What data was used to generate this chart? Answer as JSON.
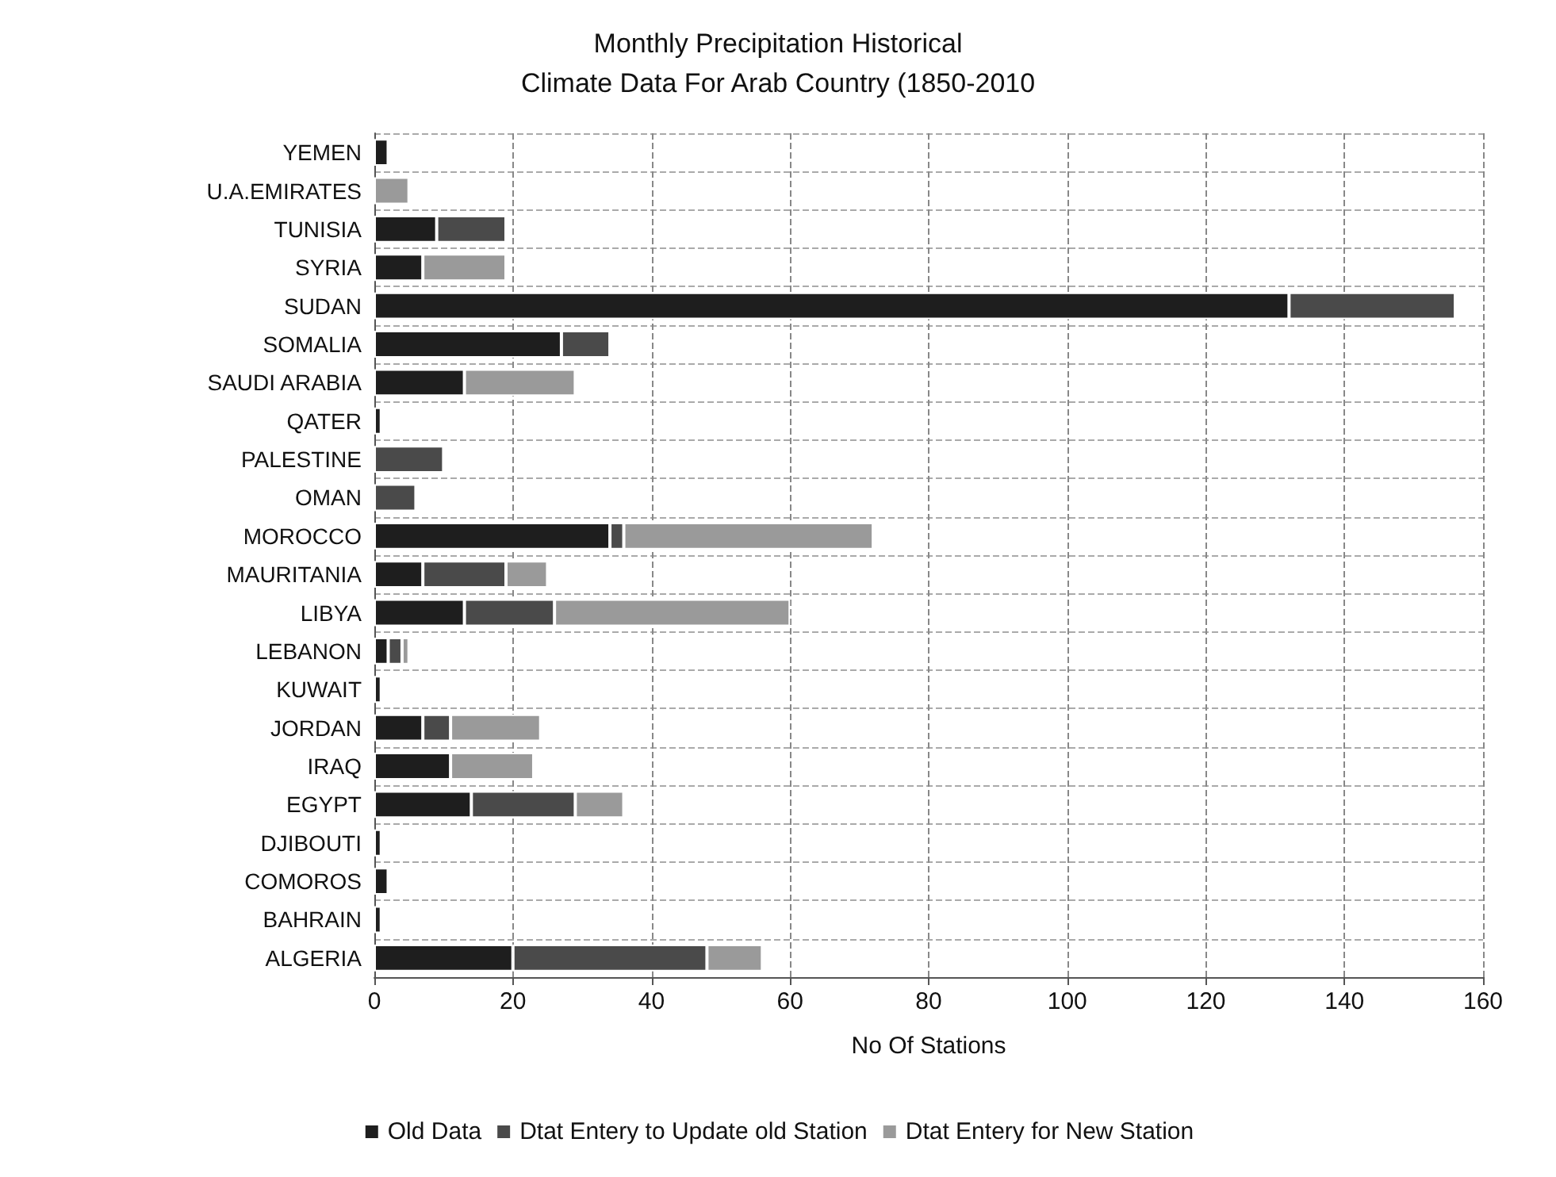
{
  "chart_data": {
    "type": "bar",
    "orientation": "horizontal",
    "stacked": true,
    "title": "Monthly Precipitation Historical",
    "subtitle": "Climate Data For Arab Country (1850-2010",
    "xlabel": "No Of Stations",
    "categories": [
      "YEMEN",
      "U.A.EMIRATES",
      "TUNISIA",
      "SYRIA",
      "SUDAN",
      "SOMALIA",
      "SAUDI ARABIA",
      "QATER",
      "PALESTINE",
      "OMAN",
      "MOROCCO",
      "MAURITANIA",
      "LIBYA",
      "LEBANON",
      "KUWAIT",
      "JORDAN",
      "IRAQ",
      "EGYPT",
      "DJIBOUTI",
      "COMOROS",
      "BAHRAIN",
      "ALGERIA"
    ],
    "series": [
      {
        "name": "Old Data",
        "color": "#1e1e1e",
        "values": [
          2,
          0,
          9,
          7,
          132,
          27,
          13,
          1,
          0,
          0,
          34,
          7,
          13,
          2,
          1,
          7,
          11,
          14,
          1,
          2,
          1,
          20
        ]
      },
      {
        "name": "Dtat Entery to Update old Station",
        "color": "#4a4a4a",
        "values": [
          0,
          0,
          10,
          0,
          24,
          7,
          0,
          0,
          10,
          6,
          2,
          12,
          13,
          2,
          0,
          4,
          0,
          15,
          0,
          0,
          0,
          28
        ]
      },
      {
        "name": "Dtat Entery for New Station",
        "color": "#9a9a9a",
        "values": [
          0,
          5,
          0,
          12,
          0,
          0,
          16,
          0,
          0,
          0,
          36,
          6,
          34,
          1,
          0,
          13,
          12,
          7,
          0,
          0,
          0,
          8
        ]
      }
    ],
    "xlim": [
      0,
      160
    ],
    "xticks": [
      0,
      20,
      40,
      60,
      80,
      100,
      120,
      140,
      160
    ],
    "grid": true,
    "legend": "bottom"
  }
}
